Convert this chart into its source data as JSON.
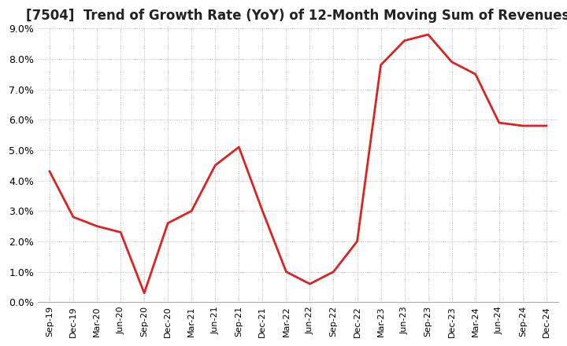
{
  "title": "[7504]  Trend of Growth Rate (YoY) of 12-Month Moving Sum of Revenues",
  "title_fontsize": 12,
  "line_color": "#dd2222",
  "background_color": "#ffffff",
  "grid_color": "#aaaaaa",
  "ylim": [
    0.0,
    9.0
  ],
  "x_labels": [
    "Sep-19",
    "Dec-19",
    "Mar-20",
    "Jun-20",
    "Sep-20",
    "Dec-20",
    "Mar-21",
    "Jun-21",
    "Sep-21",
    "Dec-21",
    "Mar-22",
    "Jun-22",
    "Sep-22",
    "Dec-22",
    "Mar-23",
    "Jun-23",
    "Sep-23",
    "Dec-23",
    "Mar-24",
    "Jun-24",
    "Sep-24",
    "Dec-24"
  ],
  "y_values": [
    4.3,
    2.8,
    2.5,
    2.3,
    0.3,
    2.6,
    3.0,
    4.5,
    5.1,
    3.0,
    1.0,
    0.6,
    1.0,
    2.0,
    7.8,
    8.6,
    8.8,
    7.9,
    7.5,
    5.9,
    5.8,
    5.8
  ]
}
